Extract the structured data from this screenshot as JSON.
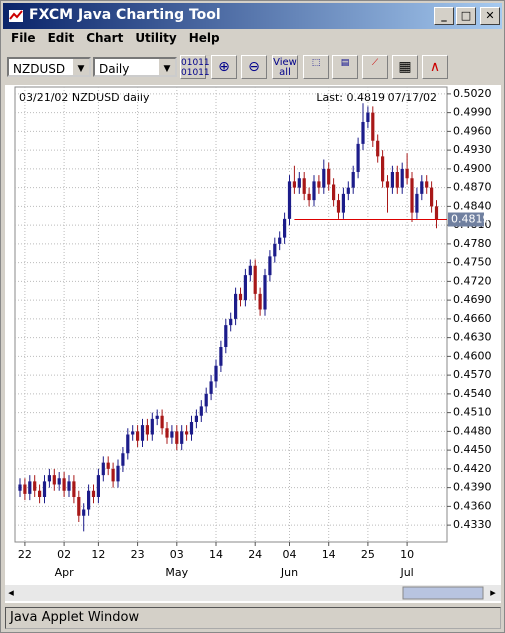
{
  "window": {
    "title": "FXCM Java Charting Tool",
    "menu": [
      "File",
      "Edit",
      "Chart",
      "Utility",
      "Help"
    ],
    "symbol": "NZDUSD",
    "period": "Daily",
    "toolbar_bits": "01011",
    "toolbar_view": "View",
    "toolbar_all": "all",
    "status": "Java Applet Window"
  },
  "chart_data": {
    "type": "candlestick",
    "header": "03/21/02 NZDUSD daily",
    "last_label": "Last: 0.4819",
    "last_date": "07/17/02",
    "last_value": 0.4819,
    "up_color": "#1c1c8a",
    "down_color": "#a81818",
    "grid": true,
    "categories": [
      null,
      "22",
      null,
      null,
      null,
      null,
      null,
      null,
      null,
      "02",
      null,
      null,
      null,
      null,
      null,
      null,
      "12",
      null,
      null,
      null,
      null,
      null,
      null,
      null,
      "23",
      null,
      null,
      null,
      null,
      null,
      null,
      null,
      "03",
      null,
      null,
      null,
      null,
      null,
      null,
      null,
      "14",
      null,
      null,
      null,
      null,
      null,
      null,
      null,
      "24",
      null,
      null,
      null,
      null,
      null,
      null,
      "04",
      null,
      null,
      null,
      null,
      null,
      null,
      null,
      "14",
      null,
      null,
      null,
      null,
      null,
      null,
      null,
      "25",
      null,
      null,
      null,
      null,
      null,
      null,
      null,
      "10",
      null,
      null,
      null,
      null,
      null,
      null
    ],
    "month_labels": [
      null,
      null,
      null,
      null,
      null,
      null,
      null,
      null,
      null,
      "Apr",
      null,
      null,
      null,
      null,
      null,
      null,
      null,
      null,
      null,
      null,
      null,
      null,
      null,
      null,
      null,
      null,
      null,
      null,
      null,
      null,
      null,
      null,
      "May",
      null,
      null,
      null,
      null,
      null,
      null,
      null,
      null,
      null,
      null,
      null,
      null,
      null,
      null,
      null,
      null,
      null,
      null,
      null,
      null,
      null,
      null,
      "Jun",
      null,
      null,
      null,
      null,
      null,
      null,
      null,
      null,
      null,
      null,
      null,
      null,
      null,
      null,
      null,
      null,
      null,
      null,
      null,
      null,
      null,
      null,
      null,
      "Jul",
      null,
      null,
      null,
      null,
      null,
      null
    ],
    "open": [
      0.4385,
      0.4395,
      0.438,
      0.44,
      0.4385,
      0.4375,
      0.44,
      0.441,
      0.4395,
      0.4405,
      0.4385,
      0.44,
      0.4375,
      0.4345,
      0.4355,
      0.4385,
      0.4375,
      0.441,
      0.443,
      0.442,
      0.44,
      0.4425,
      0.4445,
      0.4475,
      0.448,
      0.4465,
      0.449,
      0.4475,
      0.45,
      0.4505,
      0.4485,
      0.447,
      0.448,
      0.446,
      0.448,
      0.4475,
      0.4495,
      0.4505,
      0.452,
      0.454,
      0.456,
      0.4585,
      0.4615,
      0.465,
      0.466,
      0.47,
      0.469,
      0.473,
      0.4745,
      0.47,
      0.4675,
      0.473,
      0.476,
      0.478,
      0.479,
      0.482,
      0.488,
      0.487,
      0.4885,
      0.486,
      0.485,
      0.488,
      0.487,
      0.49,
      0.4875,
      0.485,
      0.483,
      0.486,
      0.487,
      0.4895,
      0.494,
      0.4975,
      0.499,
      0.4945,
      0.492,
      0.488,
      0.487,
      0.4895,
      0.487,
      0.49,
      0.4885,
      0.483,
      0.486,
      0.488,
      0.487,
      0.484
    ],
    "high": [
      0.4405,
      0.4405,
      0.441,
      0.441,
      0.4395,
      0.441,
      0.442,
      0.442,
      0.4415,
      0.4415,
      0.441,
      0.441,
      0.4385,
      0.4365,
      0.4395,
      0.4395,
      0.442,
      0.444,
      0.444,
      0.443,
      0.4435,
      0.4455,
      0.4485,
      0.449,
      0.449,
      0.45,
      0.45,
      0.451,
      0.4515,
      0.4515,
      0.4495,
      0.449,
      0.449,
      0.449,
      0.449,
      0.4505,
      0.4515,
      0.453,
      0.455,
      0.457,
      0.4595,
      0.4625,
      0.466,
      0.467,
      0.471,
      0.471,
      0.474,
      0.4755,
      0.4755,
      0.471,
      0.474,
      0.477,
      0.479,
      0.48,
      0.483,
      0.489,
      0.4905,
      0.4895,
      0.4895,
      0.487,
      0.489,
      0.489,
      0.4915,
      0.491,
      0.4885,
      0.486,
      0.487,
      0.488,
      0.4905,
      0.495,
      0.5005,
      0.5,
      0.5,
      0.4955,
      0.493,
      0.489,
      0.4905,
      0.4905,
      0.491,
      0.4925,
      0.4895,
      0.487,
      0.489,
      0.489,
      0.488,
      0.485
    ],
    "low": [
      0.4375,
      0.437,
      0.437,
      0.4375,
      0.4365,
      0.4365,
      0.439,
      0.4385,
      0.4385,
      0.4375,
      0.4375,
      0.4365,
      0.4335,
      0.432,
      0.4345,
      0.4365,
      0.4365,
      0.44,
      0.441,
      0.439,
      0.439,
      0.4415,
      0.4435,
      0.4465,
      0.4455,
      0.4455,
      0.4465,
      0.4465,
      0.449,
      0.4475,
      0.446,
      0.446,
      0.445,
      0.445,
      0.4465,
      0.4465,
      0.4485,
      0.4495,
      0.451,
      0.453,
      0.455,
      0.4575,
      0.4605,
      0.464,
      0.465,
      0.468,
      0.468,
      0.472,
      0.469,
      0.4665,
      0.4665,
      0.472,
      0.475,
      0.477,
      0.478,
      0.481,
      0.486,
      0.486,
      0.485,
      0.484,
      0.484,
      0.486,
      0.486,
      0.4865,
      0.484,
      0.482,
      0.482,
      0.485,
      0.486,
      0.4885,
      0.493,
      0.4965,
      0.4935,
      0.491,
      0.487,
      0.483,
      0.486,
      0.486,
      0.486,
      0.4875,
      0.4815,
      0.482,
      0.485,
      0.486,
      0.483,
      0.4805
    ],
    "close": [
      0.4395,
      0.438,
      0.44,
      0.4385,
      0.4375,
      0.44,
      0.441,
      0.4395,
      0.4405,
      0.4385,
      0.44,
      0.4375,
      0.4345,
      0.4355,
      0.4385,
      0.4375,
      0.441,
      0.443,
      0.442,
      0.44,
      0.4425,
      0.4445,
      0.4475,
      0.448,
      0.4465,
      0.449,
      0.4475,
      0.45,
      0.4505,
      0.4485,
      0.447,
      0.448,
      0.446,
      0.448,
      0.4475,
      0.4495,
      0.4505,
      0.452,
      0.454,
      0.456,
      0.4585,
      0.4615,
      0.465,
      0.466,
      0.47,
      0.469,
      0.473,
      0.4745,
      0.47,
      0.4675,
      0.473,
      0.476,
      0.478,
      0.479,
      0.482,
      0.488,
      0.487,
      0.4885,
      0.486,
      0.485,
      0.488,
      0.487,
      0.49,
      0.4875,
      0.485,
      0.483,
      0.486,
      0.487,
      0.4895,
      0.494,
      0.4975,
      0.499,
      0.4945,
      0.492,
      0.488,
      0.487,
      0.4895,
      0.487,
      0.49,
      0.4885,
      0.483,
      0.486,
      0.488,
      0.487,
      0.484,
      0.4819
    ],
    "ylim": [
      0.4303,
      0.5031
    ],
    "yticks": [
      {
        "value": 0.502,
        "label": "0.5020"
      },
      {
        "value": 0.499,
        "label": "0.4990"
      },
      {
        "value": 0.496,
        "label": "0.4960"
      },
      {
        "value": 0.493,
        "label": "0.4930"
      },
      {
        "value": 0.49,
        "label": "0.4900"
      },
      {
        "value": 0.487,
        "label": "0.4870"
      },
      {
        "value": 0.484,
        "label": "0.4840"
      },
      {
        "value": 0.481,
        "label": "0.4810"
      },
      {
        "value": 0.478,
        "label": "0.4780"
      },
      {
        "value": 0.475,
        "label": "0.4750"
      },
      {
        "value": 0.472,
        "label": "0.4720"
      },
      {
        "value": 0.469,
        "label": "0.4690"
      },
      {
        "value": 0.466,
        "label": "0.4660"
      },
      {
        "value": 0.463,
        "label": "0.4630"
      },
      {
        "value": 0.46,
        "label": "0.4600"
      },
      {
        "value": 0.457,
        "label": "0.4570"
      },
      {
        "value": 0.454,
        "label": "0.4540"
      },
      {
        "value": 0.451,
        "label": "0.4510"
      },
      {
        "value": 0.448,
        "label": "0.4480"
      },
      {
        "value": 0.445,
        "label": "0.4450"
      },
      {
        "value": 0.442,
        "label": "0.4420"
      },
      {
        "value": 0.439,
        "label": "0.4390"
      },
      {
        "value": 0.436,
        "label": "0.4360"
      },
      {
        "value": 0.433,
        "label": "0.4330"
      }
    ]
  }
}
